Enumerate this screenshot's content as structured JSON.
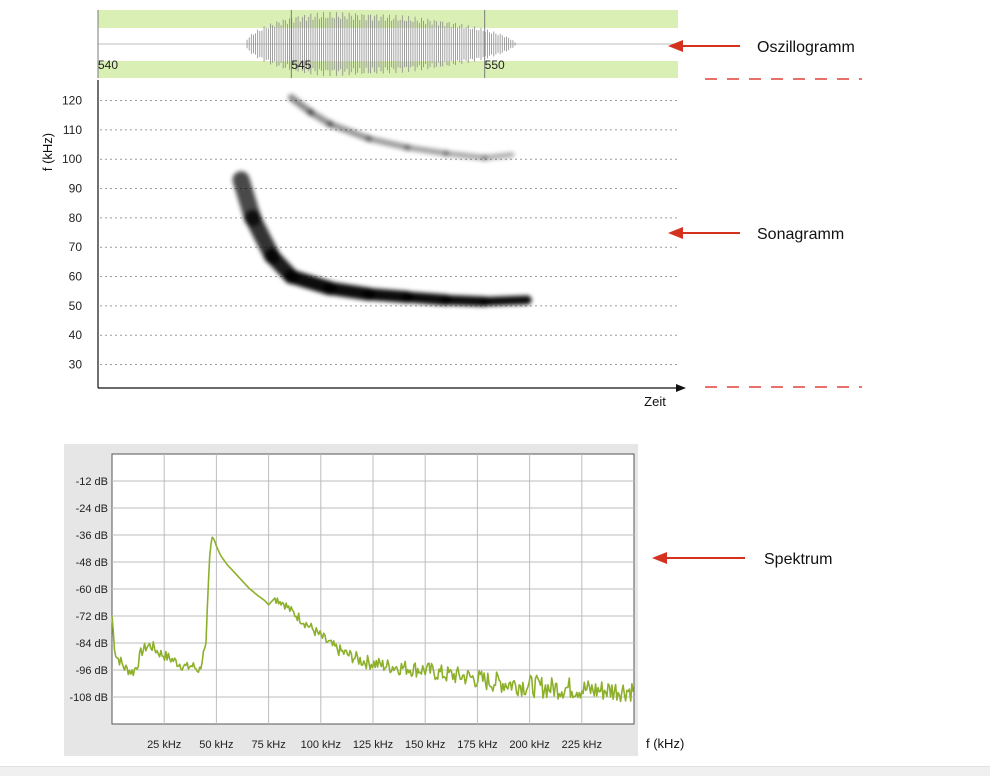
{
  "labels": {
    "oscillogram": "Oszillogramm",
    "sonagram": "Sonagramm",
    "spectrum": "Spektrum"
  },
  "colors": {
    "arrow": "#d5311f",
    "oscBand": "#d9efb3",
    "spectrumLine": "#8db02a",
    "spectrumBg": "#e6e6e6"
  },
  "chart_data": [
    {
      "type": "line",
      "name": "oscillogram",
      "xticks": [
        "540",
        "545",
        "550"
      ],
      "xlim": [
        540,
        555
      ],
      "signal": {
        "start": 543.8,
        "peak": 546.0,
        "end": 550.8,
        "maxAmplitude": 1.0
      }
    },
    {
      "type": "heatmap",
      "name": "sonagram",
      "ylabel": "f (kHz)",
      "xlabel": "Zeit",
      "ylim": [
        22,
        127
      ],
      "xlim": [
        540,
        555
      ],
      "yticks": [
        30,
        40,
        50,
        60,
        70,
        80,
        90,
        100,
        110,
        120
      ],
      "grid": true,
      "traces": [
        {
          "label": "fundamental",
          "intensity": 0.95,
          "points": [
            [
              543.7,
              93
            ],
            [
              544.0,
              80
            ],
            [
              544.5,
              67
            ],
            [
              545.0,
              60
            ],
            [
              546.0,
              56
            ],
            [
              547.0,
              54
            ],
            [
              548.0,
              53
            ],
            [
              549.0,
              52
            ],
            [
              550.0,
              51.5
            ],
            [
              551.1,
              52
            ]
          ]
        },
        {
          "label": "harmonic",
          "intensity": 0.5,
          "points": [
            [
              545.0,
              121
            ],
            [
              545.5,
              116
            ],
            [
              546.0,
              112
            ],
            [
              547.0,
              107
            ],
            [
              548.0,
              104
            ],
            [
              549.0,
              102
            ],
            [
              550.0,
              100.5
            ],
            [
              550.7,
              101.5
            ]
          ]
        }
      ]
    },
    {
      "type": "line",
      "name": "spectrum",
      "xlabel": "f (kHz)",
      "xlim": [
        0,
        250
      ],
      "ylim": [
        -120,
        0
      ],
      "xticks": [
        "25 kHz",
        "50 kHz",
        "75 kHz",
        "100 kHz",
        "125 kHz",
        "150 kHz",
        "175 kHz",
        "200 kHz",
        "225 kHz"
      ],
      "yticks": [
        "-12 dB",
        "-24 dB",
        "-36 dB",
        "-48 dB",
        "-60 dB",
        "-72 dB",
        "-84 dB",
        "-96 dB",
        "-108 dB"
      ],
      "grid": true,
      "series": [
        {
          "x": [
            0,
            1,
            2,
            4,
            6,
            8,
            10,
            12,
            14,
            16,
            18,
            20,
            22,
            24,
            26,
            28,
            30,
            32,
            34,
            36,
            38,
            40,
            42,
            44,
            45,
            46,
            47,
            48,
            49,
            50,
            52,
            55,
            58,
            62,
            66,
            70,
            73,
            75,
            78,
            82,
            86,
            90,
            95,
            100,
            105,
            110,
            115,
            120,
            125,
            130,
            140,
            150,
            160,
            170,
            180,
            190,
            200,
            210,
            220,
            230,
            240,
            250
          ],
          "y": [
            -72,
            -84,
            -90,
            -92,
            -95,
            -96,
            -97,
            -94,
            -88,
            -86,
            -85,
            -86,
            -88,
            -89,
            -90,
            -91,
            -92,
            -93,
            -94,
            -95,
            -94,
            -95,
            -96,
            -88,
            -84,
            -60,
            -42,
            -37,
            -38,
            -41,
            -45,
            -49,
            -52,
            -56,
            -60,
            -63,
            -65,
            -67,
            -64,
            -66,
            -70,
            -73,
            -77,
            -81,
            -85,
            -88,
            -90,
            -92,
            -93,
            -94,
            -95,
            -96,
            -98,
            -99,
            -101,
            -102,
            -103,
            -104,
            -104,
            -105,
            -105,
            -105
          ]
        }
      ]
    }
  ]
}
